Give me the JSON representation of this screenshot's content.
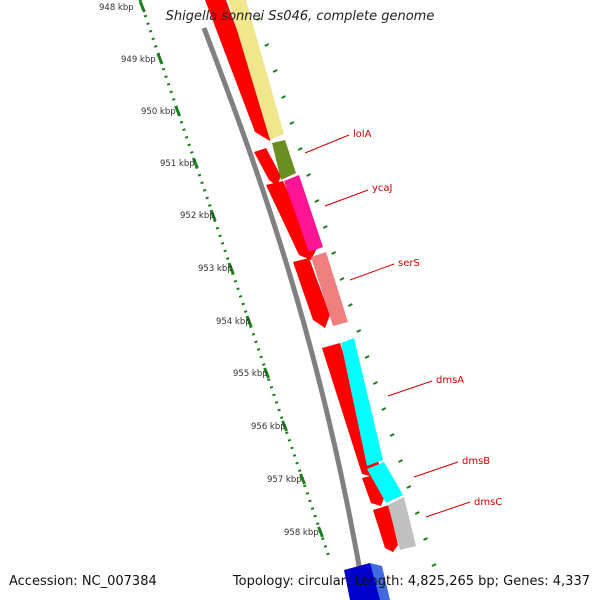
{
  "title": "Shigella sonnei Ss046, complete genome",
  "accession": "Accession: NC_007384",
  "topology": "Topology: circular; Length: 4,825,265 bp; Genes: 4,337",
  "scale": {
    "unit": "kbp",
    "ticks": [
      "948 kbp",
      "949 kbp",
      "950 kbp",
      "951 kbp",
      "952 kbp",
      "953 kbp",
      "954 kbp",
      "955 kbp",
      "956 kbp",
      "957 kbp",
      "958 kbp"
    ]
  },
  "genes": [
    {
      "name": "lolA",
      "color": "#6b8e23"
    },
    {
      "name": "ycaJ",
      "color": "#ff1493"
    },
    {
      "name": "serS",
      "color": "#f08080"
    },
    {
      "name": "dmsA",
      "color": "#00ffff"
    },
    {
      "name": "dmsB",
      "color": "#00ffff"
    },
    {
      "name": "dmsC",
      "color": "#c0c0c0"
    }
  ],
  "colors": {
    "cds": "#ff0000",
    "backbone": "#777777",
    "ruler": "#1a7f1a",
    "upstream_gene": "#f0e68c",
    "downstream_gene": "#0000cd"
  }
}
